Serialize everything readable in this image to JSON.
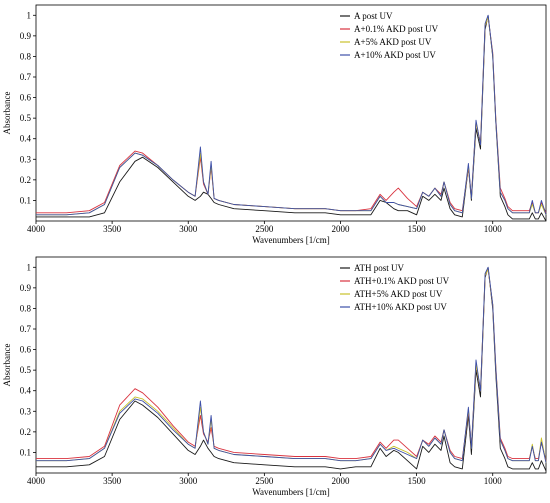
{
  "chart_data": [
    {
      "type": "line",
      "xlabel": "Wavenumbers [1/cm]",
      "ylabel": "Absorbance",
      "xlim": [
        4000,
        650
      ],
      "ylim": [
        0,
        1.05
      ],
      "x_reversed": true,
      "grid": false,
      "legend_position": "top-right",
      "xticks": [
        4000,
        3500,
        3000,
        2500,
        2000,
        1500,
        1000
      ],
      "yticks": [
        0.1,
        0.2,
        0.3,
        0.4,
        0.5,
        0.6,
        0.7,
        0.8,
        0.9,
        1
      ],
      "x": [
        4000,
        3800,
        3650,
        3550,
        3450,
        3350,
        3300,
        3200,
        3100,
        3000,
        2955,
        2920,
        2900,
        2870,
        2850,
        2830,
        2800,
        2700,
        2500,
        2300,
        2100,
        2000,
        1900,
        1800,
        1740,
        1700,
        1650,
        1620,
        1560,
        1500,
        1460,
        1420,
        1380,
        1340,
        1320,
        1280,
        1250,
        1200,
        1160,
        1140,
        1110,
        1080,
        1050,
        1030,
        1000,
        980,
        950,
        920,
        900,
        870,
        800,
        760,
        740,
        720,
        700,
        680,
        650
      ],
      "series": [
        {
          "name": "A post UV",
          "color": "#1a1a1a",
          "values": [
            0.02,
            0.02,
            0.02,
            0.04,
            0.19,
            0.29,
            0.31,
            0.26,
            0.19,
            0.12,
            0.1,
            0.12,
            0.14,
            0.13,
            0.11,
            0.09,
            0.08,
            0.06,
            0.05,
            0.04,
            0.04,
            0.03,
            0.03,
            0.03,
            0.1,
            0.09,
            0.06,
            0.05,
            0.05,
            0.03,
            0.12,
            0.1,
            0.13,
            0.1,
            0.16,
            0.06,
            0.03,
            0.02,
            0.26,
            0.1,
            0.45,
            0.35,
            0.93,
            1.0,
            0.8,
            0.48,
            0.12,
            0.07,
            0.03,
            0.01,
            0.01,
            0.01,
            0.04,
            0.01,
            0.01,
            0.04,
            0.0
          ]
        },
        {
          "name": "A+0.1% AKD post UV",
          "color": "#d9333f",
          "values": [
            0.04,
            0.04,
            0.05,
            0.09,
            0.27,
            0.34,
            0.33,
            0.27,
            0.2,
            0.14,
            0.12,
            0.31,
            0.18,
            0.13,
            0.26,
            0.11,
            0.1,
            0.08,
            0.07,
            0.06,
            0.06,
            0.05,
            0.05,
            0.06,
            0.13,
            0.1,
            0.14,
            0.16,
            0.11,
            0.07,
            0.14,
            0.12,
            0.16,
            0.13,
            0.19,
            0.09,
            0.06,
            0.05,
            0.26,
            0.12,
            0.48,
            0.38,
            0.95,
            0.99,
            0.82,
            0.5,
            0.16,
            0.11,
            0.07,
            0.05,
            0.05,
            0.05,
            0.09,
            0.04,
            0.04,
            0.09,
            0.04
          ]
        },
        {
          "name": "A+5% AKD post UV",
          "color": "#c9c12a",
          "values": [
            0.03,
            0.03,
            0.04,
            0.08,
            0.26,
            0.33,
            0.32,
            0.27,
            0.2,
            0.14,
            0.12,
            0.33,
            0.19,
            0.13,
            0.27,
            0.11,
            0.1,
            0.08,
            0.07,
            0.06,
            0.06,
            0.05,
            0.05,
            0.05,
            0.12,
            0.09,
            0.09,
            0.08,
            0.07,
            0.06,
            0.14,
            0.12,
            0.16,
            0.12,
            0.19,
            0.08,
            0.05,
            0.04,
            0.27,
            0.11,
            0.48,
            0.37,
            0.95,
            0.99,
            0.81,
            0.49,
            0.14,
            0.1,
            0.06,
            0.04,
            0.04,
            0.04,
            0.08,
            0.04,
            0.04,
            0.08,
            0.03
          ]
        },
        {
          "name": "A+10% AKD post UV",
          "color": "#3d4fa8",
          "values": [
            0.03,
            0.03,
            0.04,
            0.08,
            0.26,
            0.33,
            0.32,
            0.27,
            0.2,
            0.14,
            0.12,
            0.36,
            0.19,
            0.13,
            0.29,
            0.11,
            0.1,
            0.08,
            0.07,
            0.06,
            0.06,
            0.05,
            0.05,
            0.05,
            0.12,
            0.09,
            0.09,
            0.08,
            0.07,
            0.06,
            0.14,
            0.12,
            0.16,
            0.12,
            0.19,
            0.08,
            0.05,
            0.04,
            0.28,
            0.11,
            0.49,
            0.37,
            0.96,
            1.0,
            0.81,
            0.49,
            0.14,
            0.1,
            0.06,
            0.04,
            0.04,
            0.04,
            0.1,
            0.04,
            0.04,
            0.1,
            0.03
          ]
        }
      ]
    },
    {
      "type": "line",
      "xlabel": "Wavenumbers [1/cm]",
      "ylabel": "Absorbance",
      "xlim": [
        4000,
        650
      ],
      "ylim": [
        0,
        1.05
      ],
      "x_reversed": true,
      "grid": false,
      "legend_position": "top-right",
      "xticks": [
        4000,
        3500,
        3000,
        2500,
        2000,
        1500,
        1000
      ],
      "yticks": [
        0.1,
        0.2,
        0.3,
        0.4,
        0.5,
        0.6,
        0.7,
        0.8,
        0.9,
        1
      ],
      "x": [
        4000,
        3800,
        3650,
        3550,
        3450,
        3350,
        3300,
        3200,
        3100,
        3000,
        2955,
        2920,
        2900,
        2870,
        2850,
        2830,
        2800,
        2700,
        2500,
        2300,
        2100,
        2000,
        1900,
        1800,
        1740,
        1700,
        1650,
        1620,
        1560,
        1500,
        1460,
        1420,
        1380,
        1340,
        1320,
        1280,
        1250,
        1200,
        1160,
        1140,
        1110,
        1080,
        1050,
        1030,
        1000,
        980,
        950,
        920,
        900,
        870,
        800,
        760,
        740,
        720,
        700,
        680,
        650
      ],
      "series": [
        {
          "name": "ATH post UV",
          "color": "#1a1a1a",
          "values": [
            0.03,
            0.03,
            0.04,
            0.08,
            0.26,
            0.35,
            0.33,
            0.27,
            0.19,
            0.11,
            0.09,
            0.13,
            0.16,
            0.12,
            0.1,
            0.08,
            0.07,
            0.05,
            0.04,
            0.03,
            0.03,
            0.02,
            0.03,
            0.03,
            0.12,
            0.08,
            0.11,
            0.1,
            0.06,
            0.02,
            0.13,
            0.1,
            0.14,
            0.11,
            0.18,
            0.05,
            0.03,
            0.02,
            0.28,
            0.09,
            0.5,
            0.37,
            0.95,
            1.0,
            0.8,
            0.48,
            0.12,
            0.07,
            0.03,
            0.02,
            0.02,
            0.02,
            0.05,
            0.02,
            0.02,
            0.06,
            0.01
          ]
        },
        {
          "name": "ATH+0.1% AKD post UV",
          "color": "#d9333f",
          "values": [
            0.07,
            0.07,
            0.08,
            0.13,
            0.33,
            0.41,
            0.39,
            0.32,
            0.23,
            0.15,
            0.13,
            0.28,
            0.19,
            0.15,
            0.22,
            0.13,
            0.12,
            0.1,
            0.09,
            0.08,
            0.08,
            0.07,
            0.07,
            0.08,
            0.15,
            0.12,
            0.16,
            0.16,
            0.12,
            0.08,
            0.16,
            0.14,
            0.18,
            0.15,
            0.21,
            0.11,
            0.08,
            0.07,
            0.3,
            0.13,
            0.53,
            0.4,
            0.96,
            0.99,
            0.82,
            0.52,
            0.17,
            0.12,
            0.08,
            0.07,
            0.07,
            0.07,
            0.13,
            0.07,
            0.07,
            0.15,
            0.06
          ]
        },
        {
          "name": "ATH+5% AKD post UV",
          "color": "#c9c12a",
          "values": [
            0.06,
            0.06,
            0.07,
            0.12,
            0.3,
            0.37,
            0.36,
            0.3,
            0.22,
            0.14,
            0.12,
            0.32,
            0.2,
            0.14,
            0.26,
            0.12,
            0.11,
            0.09,
            0.08,
            0.07,
            0.07,
            0.06,
            0.06,
            0.07,
            0.14,
            0.11,
            0.13,
            0.12,
            0.1,
            0.07,
            0.16,
            0.13,
            0.17,
            0.14,
            0.21,
            0.1,
            0.07,
            0.06,
            0.31,
            0.12,
            0.53,
            0.4,
            0.96,
            0.99,
            0.82,
            0.51,
            0.16,
            0.11,
            0.07,
            0.06,
            0.06,
            0.06,
            0.14,
            0.06,
            0.06,
            0.17,
            0.05
          ]
        },
        {
          "name": "ATH+10% AKD post UV",
          "color": "#3d4fa8",
          "values": [
            0.06,
            0.06,
            0.07,
            0.12,
            0.29,
            0.36,
            0.35,
            0.29,
            0.21,
            0.14,
            0.12,
            0.35,
            0.2,
            0.14,
            0.28,
            0.12,
            0.11,
            0.09,
            0.08,
            0.07,
            0.07,
            0.06,
            0.06,
            0.07,
            0.14,
            0.11,
            0.12,
            0.11,
            0.09,
            0.07,
            0.16,
            0.13,
            0.17,
            0.14,
            0.21,
            0.1,
            0.07,
            0.06,
            0.32,
            0.12,
            0.55,
            0.4,
            0.97,
            1.0,
            0.82,
            0.51,
            0.16,
            0.11,
            0.07,
            0.06,
            0.06,
            0.06,
            0.13,
            0.06,
            0.06,
            0.15,
            0.05
          ]
        }
      ]
    }
  ]
}
